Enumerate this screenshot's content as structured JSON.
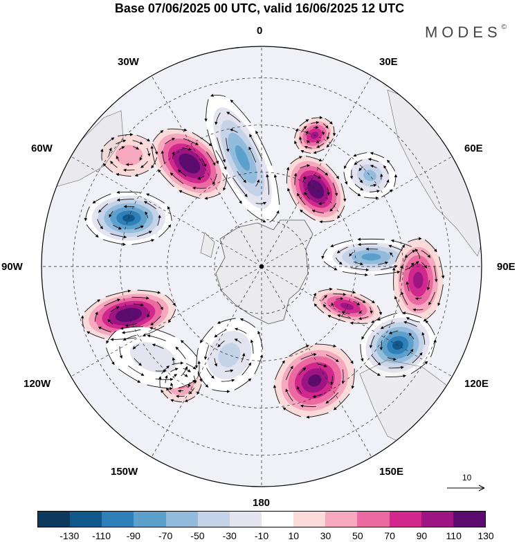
{
  "title": "Base 07/06/2025 00 UTC, valid 16/06/2025 12 UTC",
  "brand": {
    "name": "MODES",
    "mark": "©"
  },
  "longitude_labels": {
    "lon_0": "0",
    "lon_30e": "30E",
    "lon_60e": "60E",
    "lon_90e": "90E",
    "lon_120e": "120E",
    "lon_150e": "150E",
    "lon_180": "180",
    "lon_150w": "150W",
    "lon_120w": "120W",
    "lon_90w": "90W",
    "lon_60w": "60W",
    "lon_30w": "30W"
  },
  "reference_vector": {
    "value": "10"
  },
  "colorbar": {
    "colors": [
      "#0c3a5c",
      "#11598a",
      "#2f80b8",
      "#5ea0cc",
      "#93bbdb",
      "#c4d3e8",
      "#e4e4f0",
      "#ffffff",
      "#fbdada",
      "#f5a8be",
      "#ec6aa2",
      "#d1288e",
      "#9c1583",
      "#5b0c6e"
    ],
    "labels": [
      "-130",
      "-110",
      "-90",
      "-70",
      "-50",
      "-30",
      "-10",
      "10",
      "30",
      "50",
      "70",
      "90",
      "110",
      "130"
    ]
  },
  "field": {
    "anomalies": [
      {
        "lat": -50,
        "lon": -35,
        "value": 130,
        "sx": 62,
        "sy": 40,
        "rot": 40
      },
      {
        "lat": -45,
        "lon": -70,
        "value": -140,
        "sx": 62,
        "sy": 38,
        "rot": 0
      },
      {
        "lat": -45,
        "lon": -110,
        "value": 125,
        "sx": 68,
        "sy": 34,
        "rot": -10
      },
      {
        "lat": -55,
        "lon": -10,
        "value": -100,
        "sx": 100,
        "sy": 35,
        "rot": 65
      },
      {
        "lat": -45,
        "lon": 22,
        "value": 100,
        "sx": 30,
        "sy": 24,
        "rot": -30
      },
      {
        "lat": -60,
        "lon": 35,
        "value": 130,
        "sx": 52,
        "sy": 36,
        "rot": 55
      },
      {
        "lat": -45,
        "lon": 50,
        "value": -80,
        "sx": 38,
        "sy": 32,
        "rot": 20
      },
      {
        "lat": -55,
        "lon": 85,
        "value": -100,
        "sx": 70,
        "sy": 26,
        "rot": 0
      },
      {
        "lat": -40,
        "lon": 95,
        "value": 100,
        "sx": 36,
        "sy": 60,
        "rot": 0
      },
      {
        "lat": -60,
        "lon": 115,
        "value": 90,
        "sx": 50,
        "sy": 22,
        "rot": 15
      },
      {
        "lat": -40,
        "lon": 120,
        "value": -140,
        "sx": 55,
        "sy": 45,
        "rot": -20
      },
      {
        "lat": -50,
        "lon": 155,
        "value": 120,
        "sx": 50,
        "sy": 60,
        "rot": 60
      },
      {
        "lat": -60,
        "lon": -160,
        "value": -50,
        "sx": 45,
        "sy": 55,
        "rot": 30
      },
      {
        "lat": -45,
        "lon": -145,
        "value": 50,
        "sx": 30,
        "sy": 28,
        "rot": 0
      },
      {
        "lat": -45,
        "lon": -130,
        "value": -35,
        "sx": 70,
        "sy": 40,
        "rot": 20
      },
      {
        "lat": -35,
        "lon": -50,
        "value": 30,
        "sx": 40,
        "sy": 30,
        "rot": 0
      }
    ]
  }
}
